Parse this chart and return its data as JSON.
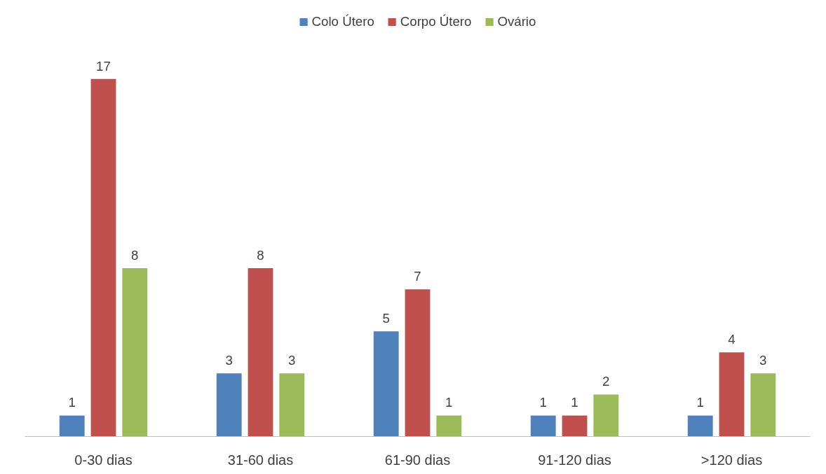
{
  "chart_data": {
    "type": "bar",
    "categories": [
      "0-30 dias",
      "31-60 dias",
      "61-90 dias",
      "91-120 dias",
      ">120 dias"
    ],
    "series": [
      {
        "name": "Colo Útero",
        "color": "#4f81bd",
        "values": [
          1,
          3,
          5,
          1,
          1
        ]
      },
      {
        "name": "Corpo Útero",
        "color": "#c0504d",
        "values": [
          17,
          8,
          7,
          1,
          4
        ]
      },
      {
        "name": "Ovário",
        "color": "#9bbb59",
        "values": [
          8,
          3,
          1,
          2,
          3
        ]
      }
    ],
    "data_labels": true,
    "legend": "top",
    "grid": false
  }
}
